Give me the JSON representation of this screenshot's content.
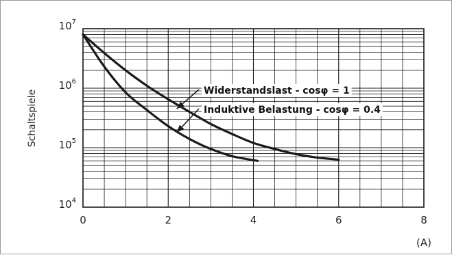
{
  "chart_data": {
    "type": "line",
    "title": "",
    "xlabel": "",
    "x_unit_label": "(A)",
    "ylabel": "Schaltspiele",
    "xlim": [
      0,
      8
    ],
    "ylim": [
      10000,
      10000000
    ],
    "y_scale": "log",
    "grid": true,
    "x_ticks": [
      0,
      2,
      4,
      6,
      8
    ],
    "x_tick_labels": [
      "0",
      "2",
      "4",
      "6",
      "8"
    ],
    "y_ticks": [
      10000,
      100000,
      1000000,
      10000000
    ],
    "y_tick_labels": [
      {
        "base": "10",
        "exp": "4"
      },
      {
        "base": "10",
        "exp": "5"
      },
      {
        "base": "10",
        "exp": "6"
      },
      {
        "base": "10",
        "exp": "7"
      }
    ],
    "series": [
      {
        "name": "Widerstandslast - cosφ = 1",
        "x": [
          0,
          0.5,
          1,
          1.5,
          2,
          2.5,
          3,
          3.5,
          4,
          4.5,
          5,
          5.5,
          6
        ],
        "y": [
          8000000,
          3900000,
          2000000,
          1100000,
          650000,
          400000,
          250000,
          170000,
          120000,
          95000,
          78000,
          68000,
          63000
        ]
      },
      {
        "name": "Induktive Belastung - cosφ = 0.4",
        "x": [
          0,
          0.5,
          1,
          1.5,
          2,
          2.5,
          3,
          3.5,
          4.1
        ],
        "y": [
          8000000,
          2300000,
          850000,
          430000,
          230000,
          140000,
          95000,
          72000,
          60000
        ]
      }
    ],
    "annotations": [
      {
        "text": "Widerstandslast - cosφ = 1",
        "points_to": {
          "x": 2.2,
          "y": 450000
        }
      },
      {
        "text": "Induktive Belastung - cosφ = 0.4",
        "points_to": {
          "x": 2.2,
          "y": 180000
        }
      }
    ],
    "colors": {
      "line": "#1a1a1a",
      "grid": "#1a1a1a",
      "text": "#222222"
    }
  }
}
